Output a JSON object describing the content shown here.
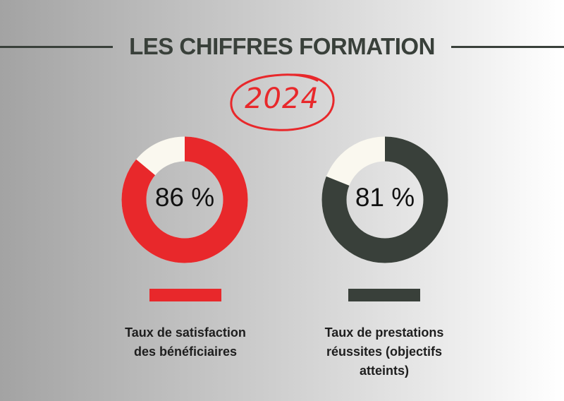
{
  "header": {
    "title": "LES CHIFFRES FORMATION",
    "year": "2024"
  },
  "colors": {
    "red": "#e8282b",
    "dark": "#39403a",
    "remainder": "#faf8ef",
    "title_text": "#39403a"
  },
  "chart_data": [
    {
      "type": "pie",
      "value": 86,
      "unit": "%",
      "label_text": "86 %",
      "color": "#e8282b",
      "remainder_color": "#faf8ef",
      "caption": "Taux de satisfaction\ndes bénéficiaires"
    },
    {
      "type": "pie",
      "value": 81,
      "unit": "%",
      "label_text": "81 %",
      "color": "#39403a",
      "remainder_color": "#faf8ef",
      "caption": "Taux de prestations\nréussites (objectifs\natteints)"
    }
  ]
}
